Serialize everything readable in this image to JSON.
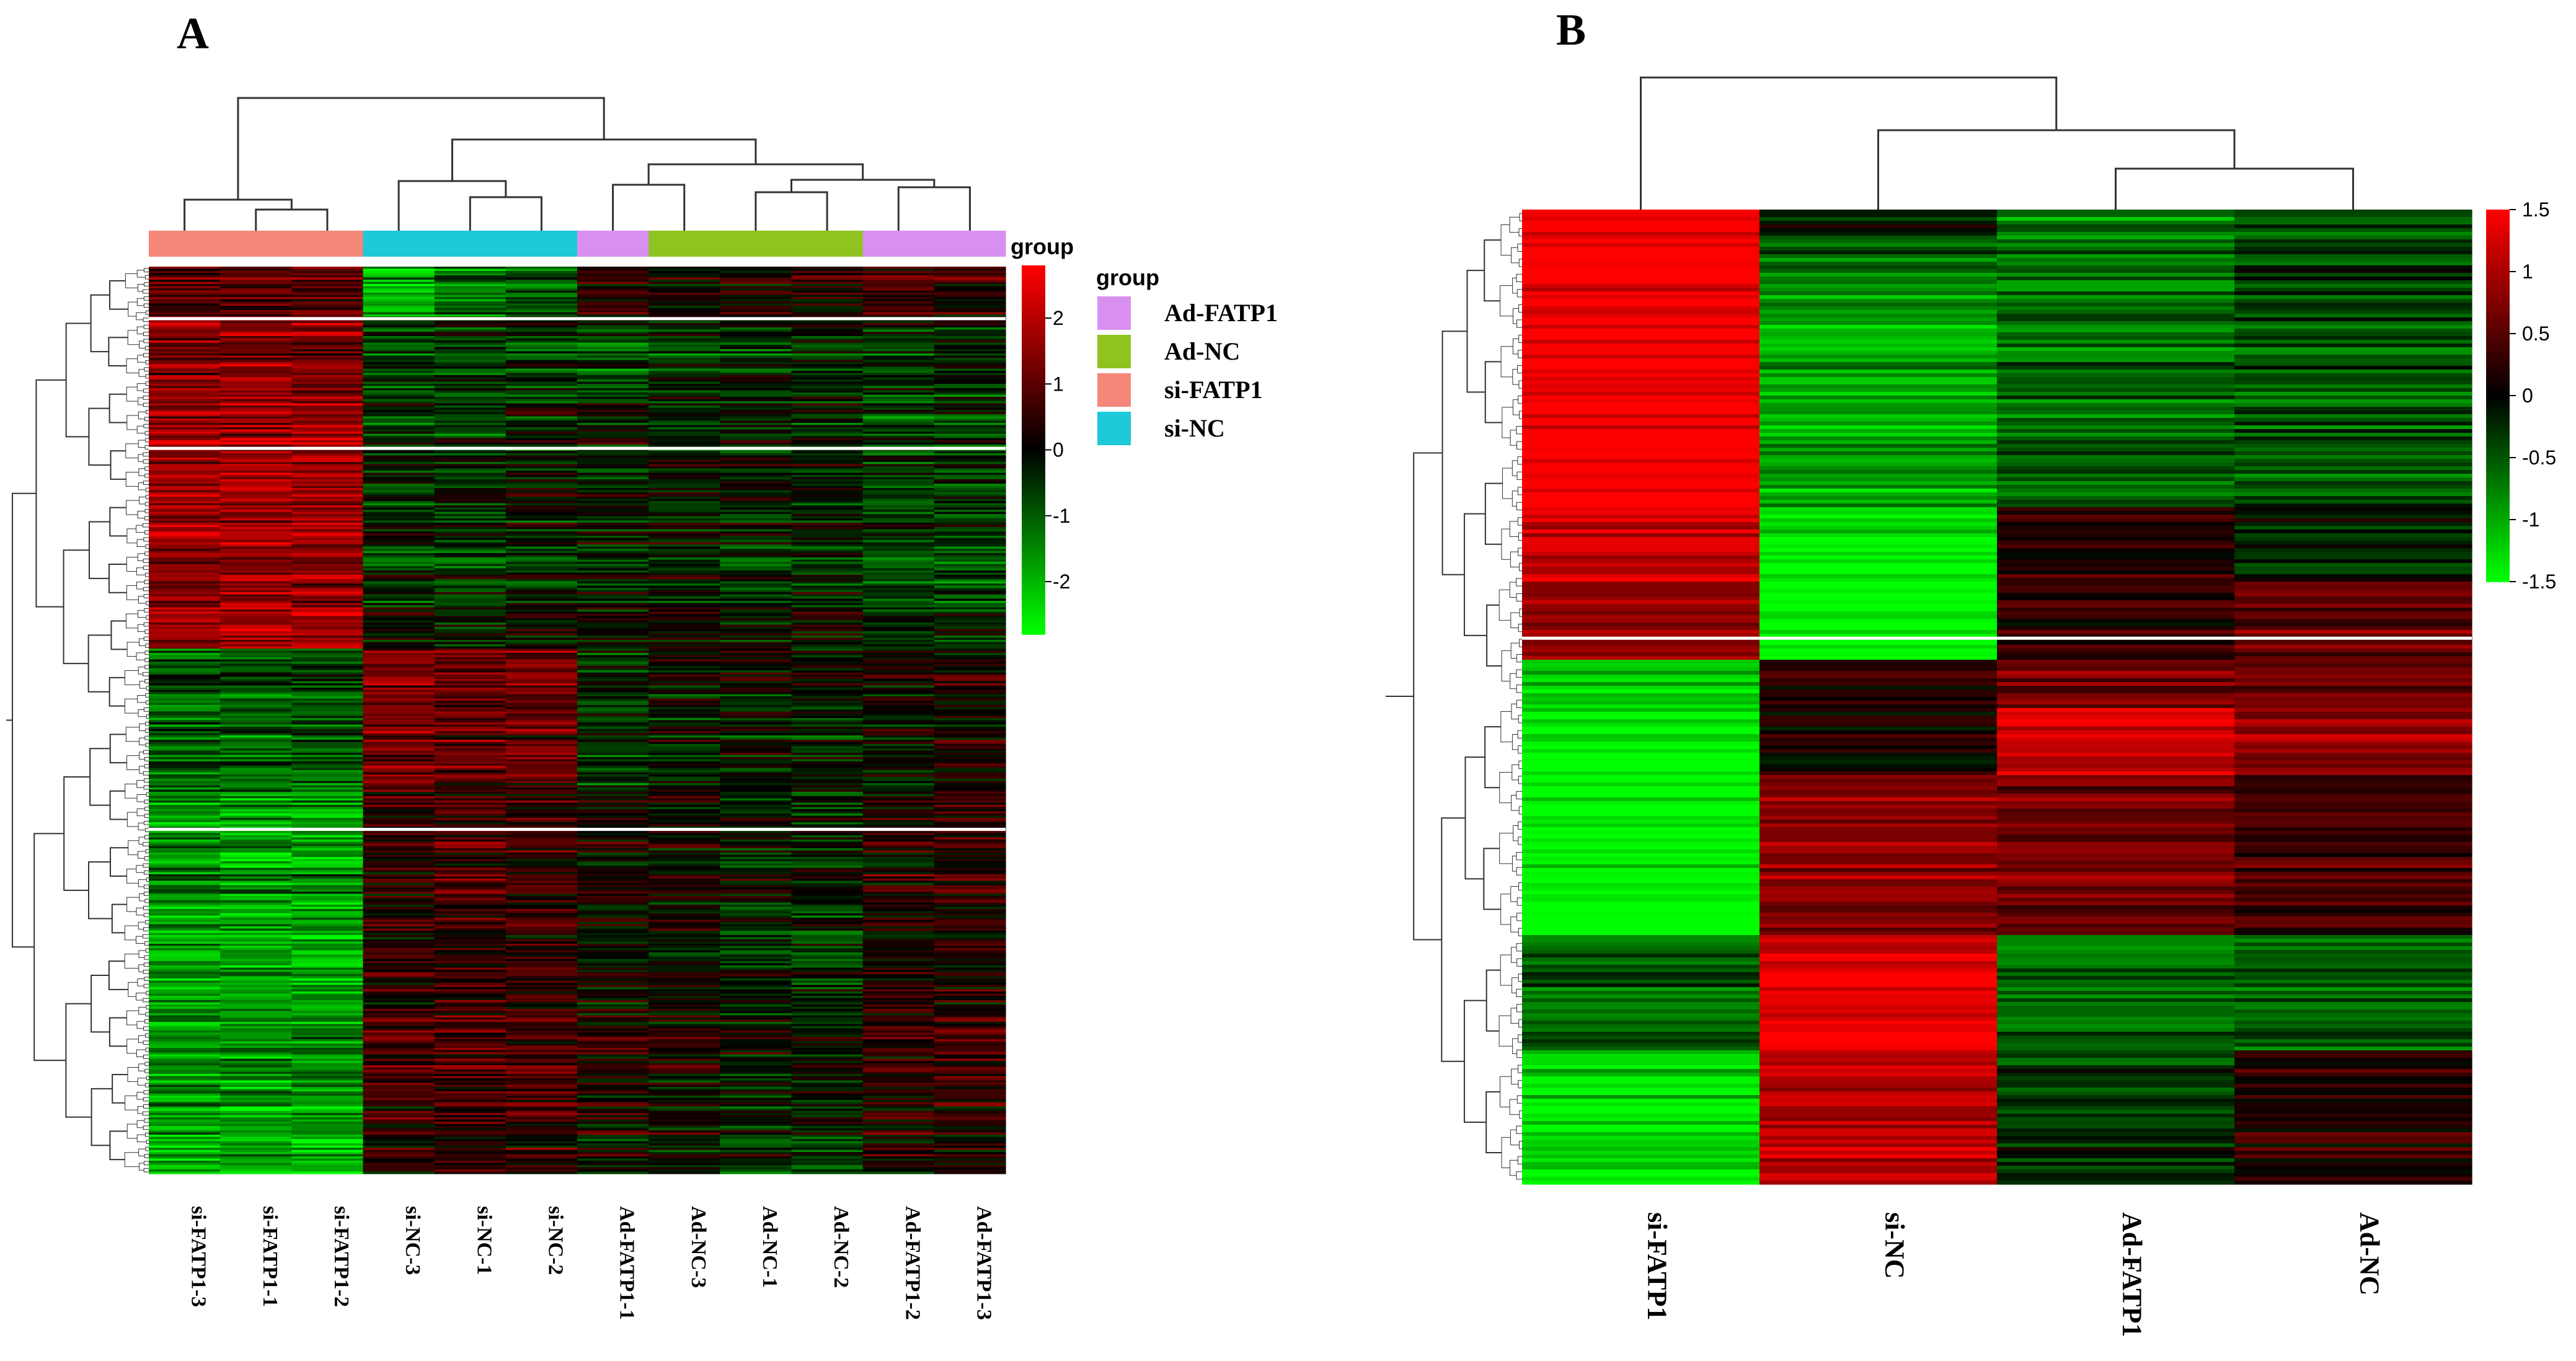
{
  "chart_data": [
    {
      "type": "heatmap",
      "panel_label": "A",
      "title": "",
      "columns": [
        "si-FATP1-3",
        "si-FATP1-1",
        "si-FATP1-2",
        "si-NC-3",
        "si-NC-1",
        "si-NC-2",
        "Ad-FATP1-1",
        "Ad-NC-3",
        "Ad-NC-1",
        "Ad-NC-2",
        "Ad-FATP1-2",
        "Ad-FATP1-3"
      ],
      "column_groups": [
        "si-FATP1",
        "si-FATP1",
        "si-FATP1",
        "si-NC",
        "si-NC",
        "si-NC",
        "Ad-FATP1",
        "Ad-NC",
        "Ad-NC",
        "Ad-NC",
        "Ad-FATP1",
        "Ad-FATP1"
      ],
      "group_annotation_label": "group",
      "group_legend": {
        "title": "group",
        "entries": [
          {
            "name": "Ad-FATP1",
            "color": "#d98ff0"
          },
          {
            "name": "Ad-NC",
            "color": "#8fc31f"
          },
          {
            "name": "si-FATP1",
            "color": "#f4877a"
          },
          {
            "name": "si-NC",
            "color": "#1ec9d8"
          }
        ]
      },
      "colorbar": {
        "min": -2.8,
        "max": 2.8,
        "ticks": [
          2,
          1,
          0,
          -1,
          -2
        ],
        "tick_labels": [
          "2",
          "1",
          "0",
          "-1",
          "-2"
        ],
        "low_color": "#00ff00",
        "mid_color": "#000000",
        "high_color": "#ff0000"
      },
      "row_blocks": [
        {
          "fraction": 0.055,
          "values": [
            0.9,
            1.0,
            1.0,
            -1.9,
            -1.2,
            -0.9,
            0.5,
            0.2,
            0.3,
            0.4,
            0.8,
            0.6
          ]
        },
        {
          "fraction": 0.085,
          "values": [
            1.4,
            1.5,
            1.4,
            -0.6,
            -0.5,
            -0.4,
            -0.9,
            -0.5,
            -0.4,
            -0.2,
            -0.5,
            -0.3
          ]
        },
        {
          "fraction": 0.28,
          "values": [
            1.6,
            1.7,
            1.6,
            -0.4,
            -0.5,
            -0.2,
            -0.3,
            -0.2,
            -0.3,
            -0.3,
            -0.7,
            -0.6
          ]
        },
        {
          "fraction": 0.16,
          "values": [
            -1.1,
            -1.1,
            -1.0,
            1.2,
            0.9,
            0.9,
            -0.5,
            -0.2,
            -0.3,
            -0.4,
            -0.1,
            0.1
          ]
        },
        {
          "fraction": 0.42,
          "values": [
            -1.6,
            -1.7,
            -1.6,
            0.5,
            0.7,
            0.6,
            0.2,
            0.1,
            -0.2,
            -0.3,
            0.4,
            0.5
          ]
        }
      ],
      "white_separator_rows_after_fraction": [
        0.057,
        0.2,
        0.62
      ]
    },
    {
      "type": "heatmap",
      "panel_label": "B",
      "title": "",
      "columns": [
        "si-FATP1",
        "si-NC",
        "Ad-FATP1",
        "Ad-NC"
      ],
      "colorbar": {
        "min": -1.5,
        "max": 1.5,
        "ticks": [
          1.5,
          1,
          0.5,
          0,
          -0.5,
          -1,
          -1.5
        ],
        "tick_labels": [
          "1.5",
          "1",
          "0.5",
          "0",
          "-0.5",
          "-1",
          "-1.5"
        ],
        "low_color": "#00ff00",
        "mid_color": "#000000",
        "high_color": "#ff0000"
      },
      "row_blocks": [
        {
          "fraction": 0.03,
          "values": [
            1.5,
            -0.2,
            -0.8,
            -0.6
          ]
        },
        {
          "fraction": 0.06,
          "values": [
            1.5,
            -0.6,
            -0.7,
            -0.3
          ]
        },
        {
          "fraction": 0.22,
          "values": [
            1.5,
            -1.0,
            -0.6,
            -0.5
          ]
        },
        {
          "fraction": 0.08,
          "values": [
            1.2,
            -1.3,
            0.3,
            -0.1
          ]
        },
        {
          "fraction": 0.08,
          "values": [
            0.8,
            -1.5,
            0.2,
            0.6
          ]
        },
        {
          "fraction": 0.05,
          "values": [
            -1.2,
            0.3,
            0.7,
            0.6
          ]
        },
        {
          "fraction": 0.07,
          "values": [
            -1.4,
            0.2,
            1.3,
            0.9
          ]
        },
        {
          "fraction": 0.17,
          "values": [
            -1.5,
            0.8,
            0.7,
            0.4
          ]
        },
        {
          "fraction": 0.12,
          "values": [
            -0.5,
            1.4,
            -0.6,
            -0.5
          ]
        },
        {
          "fraction": 0.14,
          "values": [
            -1.3,
            1.1,
            -0.3,
            0.2
          ]
        }
      ],
      "white_separator_rows_after_fraction": [
        0.44
      ]
    }
  ]
}
